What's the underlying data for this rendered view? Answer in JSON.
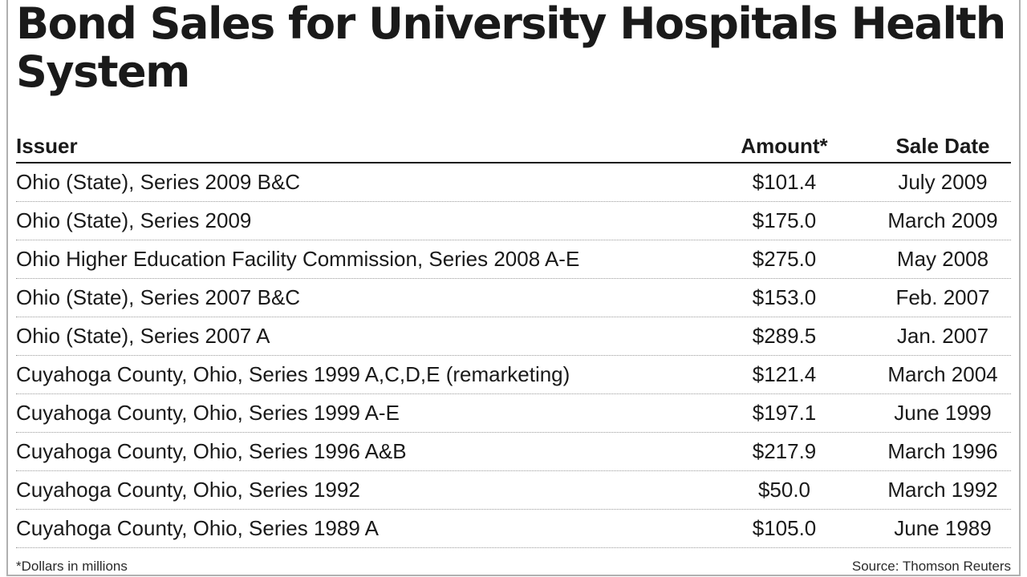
{
  "chart_data": {
    "type": "table",
    "title": "Bond Sales for University Hospitals Health System",
    "columns": [
      "Issuer",
      "Amount*",
      "Sale Date"
    ],
    "rows": [
      {
        "issuer": "Ohio (State), Series 2009 B&C",
        "amount": "$101.4",
        "date": "July 2009"
      },
      {
        "issuer": "Ohio (State), Series 2009",
        "amount": "$175.0",
        "date": "March 2009"
      },
      {
        "issuer": "Ohio Higher Education Facility Commission, Series 2008 A-E",
        "amount": "$275.0",
        "date": "May 2008"
      },
      {
        "issuer": "Ohio (State), Series 2007 B&C",
        "amount": "$153.0",
        "date": "Feb. 2007"
      },
      {
        "issuer": "Ohio (State), Series 2007 A",
        "amount": "$289.5",
        "date": "Jan. 2007"
      },
      {
        "issuer": "Cuyahoga County, Ohio, Series 1999 A,C,D,E (remarketing)",
        "amount": "$121.4",
        "date": "March 2004"
      },
      {
        "issuer": "Cuyahoga County, Ohio, Series 1999 A-E",
        "amount": "$197.1",
        "date": "June 1999"
      },
      {
        "issuer": "Cuyahoga County, Ohio, Series 1996 A&B",
        "amount": "$217.9",
        "date": "March 1996"
      },
      {
        "issuer": "Cuyahoga County, Ohio, Series 1992",
        "amount": "$50.0",
        "date": "March 1992"
      },
      {
        "issuer": "Cuyahoga County, Ohio, Series 1989 A",
        "amount": "$105.0",
        "date": "June 1989"
      }
    ],
    "footnote": "*Dollars in millions",
    "source": "Source: Thomson Reuters"
  }
}
